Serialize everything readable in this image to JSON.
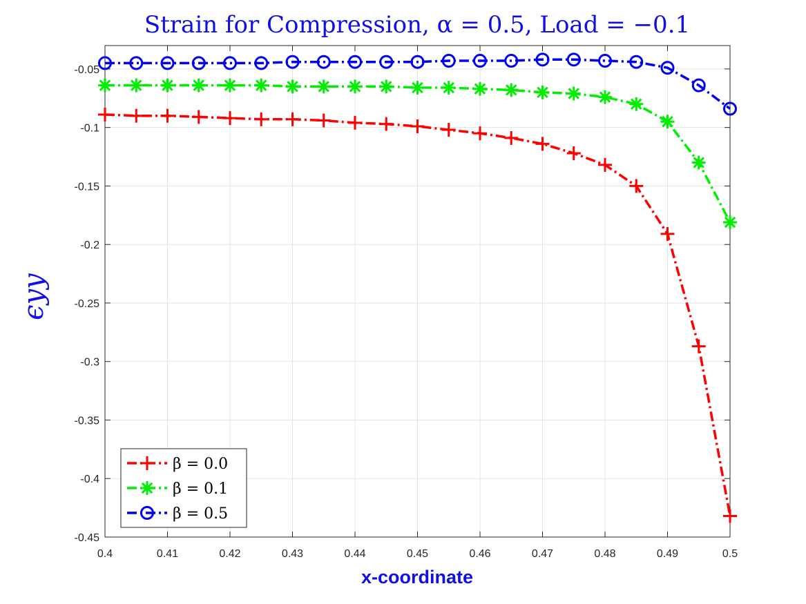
{
  "chart_data": {
    "type": "line",
    "title": "Strain for Compression, α = 0.5, Load = −0.1",
    "xlabel": "x-coordinate",
    "ylabel": "ϵyy",
    "xlim": [
      0.4,
      0.5
    ],
    "ylim": [
      -0.45,
      -0.03
    ],
    "xticks": [
      0.4,
      0.41,
      0.42,
      0.43,
      0.44,
      0.45,
      0.46,
      0.47,
      0.48,
      0.49,
      0.5
    ],
    "xtick_labels": [
      "0.4",
      "0.41",
      "0.42",
      "0.43",
      "0.44",
      "0.45",
      "0.46",
      "0.47",
      "0.48",
      "0.49",
      "0.5"
    ],
    "yticks": [
      -0.05,
      -0.1,
      -0.15,
      -0.2,
      -0.25,
      -0.3,
      -0.35,
      -0.4,
      -0.45
    ],
    "ytick_labels": [
      "-0.05",
      "-0.1",
      "-0.15",
      "-0.2",
      "-0.25",
      "-0.3",
      "-0.35",
      "-0.4",
      "-0.45"
    ],
    "grid": true,
    "legend_position": "bottom-left",
    "x": [
      0.4,
      0.405,
      0.41,
      0.415,
      0.42,
      0.425,
      0.43,
      0.435,
      0.44,
      0.445,
      0.45,
      0.455,
      0.46,
      0.465,
      0.47,
      0.475,
      0.48,
      0.485,
      0.49,
      0.495,
      0.5
    ],
    "series": [
      {
        "name": "β = 0.0",
        "color": "#ff0000",
        "marker": "plus",
        "values": [
          -0.089,
          -0.09,
          -0.09,
          -0.091,
          -0.092,
          -0.093,
          -0.093,
          -0.094,
          -0.096,
          -0.097,
          -0.099,
          -0.102,
          -0.105,
          -0.109,
          -0.114,
          -0.122,
          -0.132,
          -0.15,
          -0.191,
          -0.287,
          -0.432
        ]
      },
      {
        "name": "β = 0.1",
        "color": "#00ee00",
        "marker": "star",
        "values": [
          -0.064,
          -0.064,
          -0.064,
          -0.064,
          -0.064,
          -0.064,
          -0.065,
          -0.065,
          -0.065,
          -0.065,
          -0.066,
          -0.066,
          -0.067,
          -0.068,
          -0.07,
          -0.071,
          -0.074,
          -0.08,
          -0.095,
          -0.13,
          -0.181
        ]
      },
      {
        "name": "β = 0.5",
        "color": "#0000ee",
        "marker": "circle",
        "values": [
          -0.045,
          -0.045,
          -0.045,
          -0.045,
          -0.045,
          -0.045,
          -0.044,
          -0.044,
          -0.044,
          -0.044,
          -0.044,
          -0.043,
          -0.043,
          -0.043,
          -0.042,
          -0.042,
          -0.043,
          -0.044,
          -0.049,
          -0.064,
          -0.084
        ]
      }
    ]
  }
}
